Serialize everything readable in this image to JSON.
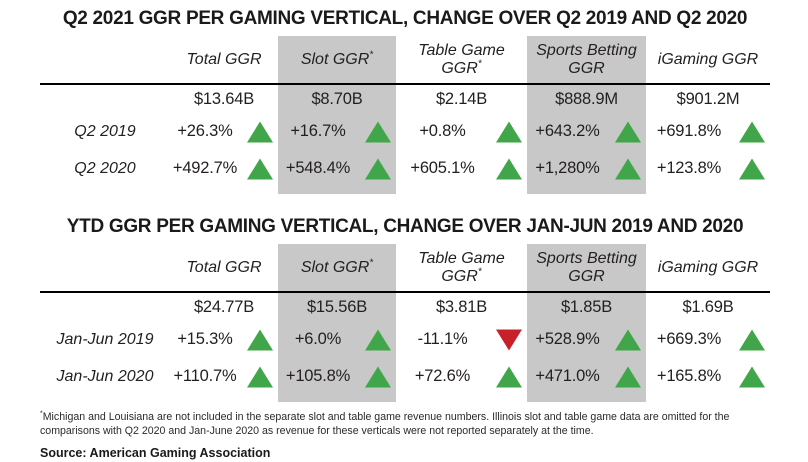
{
  "colors": {
    "band": "#c8c8c8",
    "green": "#41a649",
    "red": "#c8202a",
    "ink": "#231f20",
    "line": "#000000"
  },
  "chart_data": [
    {
      "type": "table",
      "title": "Q2 2021 GGR PER GAMING VERTICAL, CHANGE OVER Q2 2019 AND Q2 2020",
      "columns": [
        {
          "label": "Total GGR",
          "sup": "",
          "shaded": false
        },
        {
          "label": "Slot GGR",
          "sup": "*",
          "shaded": true
        },
        {
          "label": "Table Game GGR",
          "sup": "*",
          "shaded": false
        },
        {
          "label": "Sports Betting GGR",
          "sup": "",
          "shaded": true
        },
        {
          "label": "iGaming GGR",
          "sup": "",
          "shaded": false
        }
      ],
      "values": [
        "$13.64B",
        "$8.70B",
        "$2.14B",
        "$888.9M",
        "$901.2M"
      ],
      "rows": [
        {
          "label": "Q2 2019",
          "cells": [
            {
              "value": "+26.3%",
              "dir": "up"
            },
            {
              "value": "+16.7%",
              "dir": "up"
            },
            {
              "value": "+0.8%",
              "dir": "up"
            },
            {
              "value": "+643.2%",
              "dir": "up"
            },
            {
              "value": "+691.8%",
              "dir": "up"
            }
          ]
        },
        {
          "label": "Q2 2020",
          "cells": [
            {
              "value": "+492.7%",
              "dir": "up"
            },
            {
              "value": "+548.4%",
              "dir": "up"
            },
            {
              "value": "+605.1%",
              "dir": "up"
            },
            {
              "value": "+1,280%",
              "dir": "up"
            },
            {
              "value": "+123.8%",
              "dir": "up"
            }
          ]
        }
      ]
    },
    {
      "type": "table",
      "title": "YTD GGR PER GAMING VERTICAL, CHANGE OVER JAN-JUN 2019 AND 2020",
      "columns": [
        {
          "label": "Total GGR",
          "sup": "",
          "shaded": false
        },
        {
          "label": "Slot GGR",
          "sup": "*",
          "shaded": true
        },
        {
          "label": "Table Game GGR",
          "sup": "*",
          "shaded": false
        },
        {
          "label": "Sports Betting GGR",
          "sup": "",
          "shaded": true
        },
        {
          "label": "iGaming GGR",
          "sup": "",
          "shaded": false
        }
      ],
      "values": [
        "$24.77B",
        "$15.56B",
        "$3.81B",
        "$1.85B",
        "$1.69B"
      ],
      "rows": [
        {
          "label": "Jan-Jun 2019",
          "cells": [
            {
              "value": "+15.3%",
              "dir": "up"
            },
            {
              "value": "+6.0%",
              "dir": "up"
            },
            {
              "value": "-11.1%",
              "dir": "down"
            },
            {
              "value": "+528.9%",
              "dir": "up"
            },
            {
              "value": "+669.3%",
              "dir": "up"
            }
          ]
        },
        {
          "label": "Jan-Jun 2020",
          "cells": [
            {
              "value": "+110.7%",
              "dir": "up"
            },
            {
              "value": "+105.8%",
              "dir": "up"
            },
            {
              "value": "+72.6%",
              "dir": "up"
            },
            {
              "value": "+471.0%",
              "dir": "up"
            },
            {
              "value": "+165.8%",
              "dir": "up"
            }
          ]
        }
      ]
    }
  ],
  "footnote": {
    "sup": "*",
    "text": "Michigan and Louisiana are not included in the separate slot and table game revenue numbers. Illinois slot and table game data are omitted for the comparisons with Q2 2020 and Jan-June 2020 as revenue for these verticals were not reported separately at the time."
  },
  "source": "Source: American Gaming Association"
}
